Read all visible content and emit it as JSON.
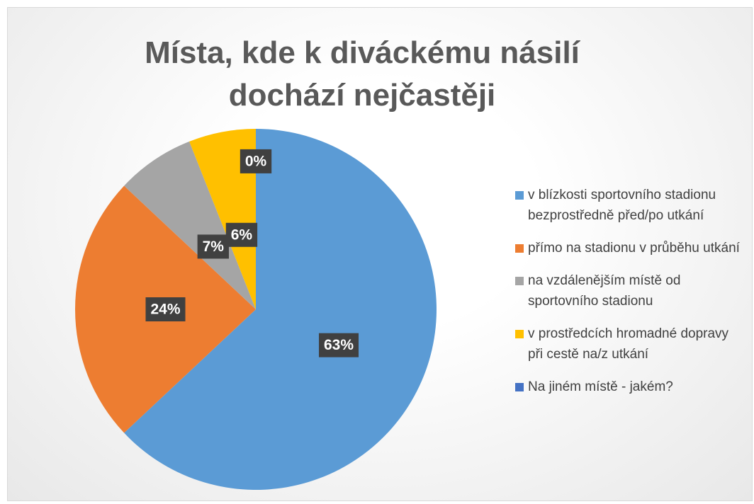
{
  "chart_data": {
    "type": "pie",
    "title": "Místa, kde k diváckému násilí dochází nejčastěji",
    "categories": [
      "v blízkosti sportovního stadionu bezprostředně před/po utkání",
      "přímo na stadionu v průběhu utkání",
      "na vzdálenějším místě od sportovního stadionu",
      "v prostředcích hromadné dopravy při cestě na/z utkání",
      "Na jiném místě - jakém?"
    ],
    "values": [
      63,
      24,
      7,
      6,
      0
    ],
    "value_labels": [
      "63%",
      "24%",
      "7%",
      "6%",
      "0%"
    ],
    "colors": [
      "#5b9bd5",
      "#ed7d31",
      "#a5a5a5",
      "#ffc000",
      "#4472c4"
    ],
    "legend": "right"
  }
}
